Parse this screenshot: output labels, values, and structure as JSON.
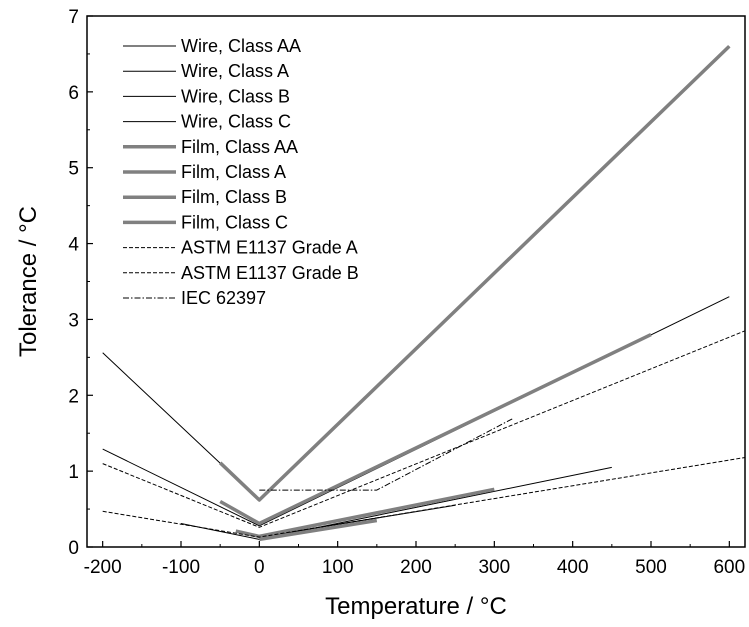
{
  "chart_data": {
    "type": "line",
    "title": "",
    "xlabel": "Temperature / °C",
    "ylabel": "Tolerance / °C",
    "xlim": [
      -220,
      620
    ],
    "ylim": [
      0,
      7
    ],
    "xticks": [
      -200,
      -100,
      0,
      100,
      200,
      300,
      400,
      500,
      600
    ],
    "yticks": [
      0,
      1,
      2,
      3,
      4,
      5,
      6,
      7
    ],
    "grid": false,
    "legend_position": "top-left",
    "series": [
      {
        "name": "Wire, Class AA",
        "style": "thin-solid",
        "color": "#000000",
        "x": [
          -100,
          0,
          450
        ],
        "y": [
          0.31,
          0.1,
          1.05
        ]
      },
      {
        "name": "Wire, Class A",
        "style": "thin-solid",
        "color": "#000000",
        "x": [
          -200,
          0,
          600
        ],
        "y": [
          1.29,
          0.28,
          3.3
        ]
      },
      {
        "name": "Wire, Class B",
        "style": "thin-solid",
        "color": "#000000",
        "x": [
          -200,
          0,
          600
        ],
        "y": [
          2.56,
          0.62,
          6.6
        ]
      },
      {
        "name": "Wire, Class C",
        "style": "thin-solid",
        "color": "#000000",
        "x": [
          0,
          250
        ],
        "y": [
          0.13,
          0.55
        ]
      },
      {
        "name": "Film, Class AA",
        "style": "thick-solid",
        "color": "#808080",
        "x": [
          0,
          150
        ],
        "y": [
          0.1,
          0.35
        ]
      },
      {
        "name": "Film, Class A",
        "style": "thick-solid",
        "color": "#808080",
        "x": [
          -30,
          0,
          300
        ],
        "y": [
          0.21,
          0.14,
          0.76
        ]
      },
      {
        "name": "Film, Class B",
        "style": "thick-solid",
        "color": "#808080",
        "x": [
          -50,
          0,
          500
        ],
        "y": [
          0.6,
          0.31,
          2.8
        ]
      },
      {
        "name": "Film, Class C",
        "style": "thick-solid",
        "color": "#808080",
        "x": [
          -50,
          0,
          600
        ],
        "y": [
          1.11,
          0.62,
          6.6
        ]
      },
      {
        "name": "ASTM E1137 Grade A",
        "style": "dashed",
        "color": "#000000",
        "x": [
          -200,
          0,
          620
        ],
        "y": [
          0.47,
          0.13,
          1.18
        ]
      },
      {
        "name": "ASTM E1137 Grade B",
        "style": "dashed",
        "color": "#000000",
        "x": [
          -200,
          0,
          620
        ],
        "y": [
          1.1,
          0.26,
          2.85
        ]
      },
      {
        "name": "IEC 62397",
        "style": "dashdot",
        "color": "#000000",
        "x": [
          0,
          150,
          325
        ],
        "y": [
          0.75,
          0.75,
          1.7
        ]
      }
    ]
  }
}
